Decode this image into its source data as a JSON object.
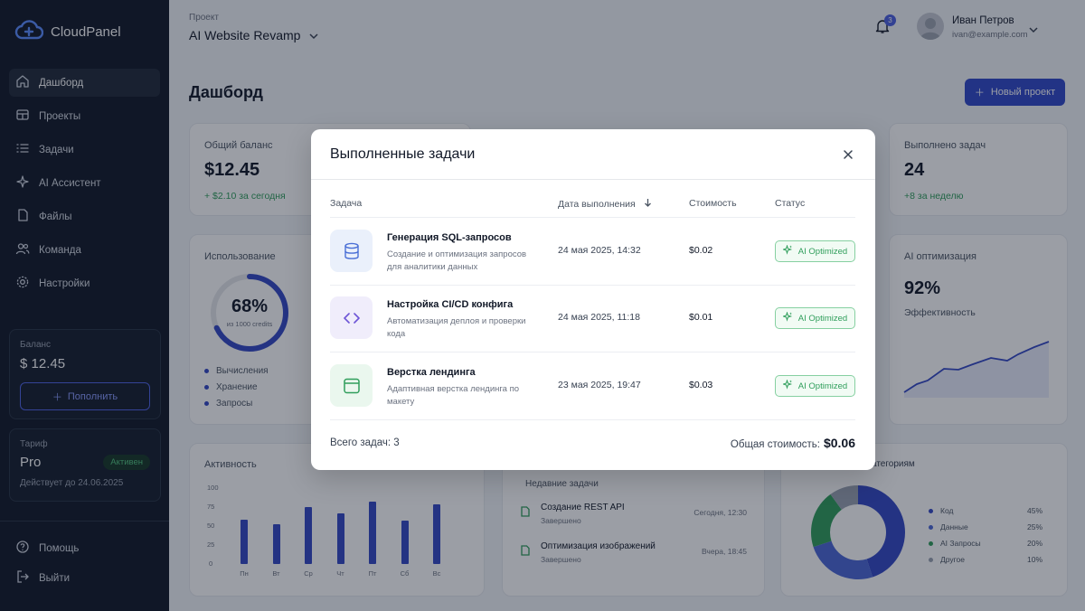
{
  "app": {
    "name": "CloudPanel"
  },
  "sidebar": {
    "items": [
      {
        "label": "Дашборд",
        "icon": "home-icon",
        "active": true
      },
      {
        "label": "Проекты",
        "icon": "folder-icon"
      },
      {
        "label": "Задачи",
        "icon": "list-icon"
      },
      {
        "label": "AI Ассистент",
        "icon": "sparkle-icon"
      },
      {
        "label": "Файлы",
        "icon": "file-icon"
      },
      {
        "label": "Команда",
        "icon": "users-icon"
      },
      {
        "label": "Настройки",
        "icon": "gear-icon"
      }
    ],
    "balance": {
      "label": "Баланс",
      "value": "$ 12.45",
      "topup": "Пополнить"
    },
    "plan": {
      "label": "Тариф",
      "name": "Pro",
      "badge": "Активен",
      "valid": "Действует до 24.06.2025"
    },
    "bottom": [
      {
        "label": "Помощь",
        "icon": "help-icon"
      },
      {
        "label": "Выйти",
        "icon": "logout-icon"
      }
    ]
  },
  "header": {
    "project_label": "Проект",
    "project_name": "AI Website Revamp",
    "notifications": "3",
    "user": {
      "name": "Иван Петров",
      "email": "ivan@example.com"
    }
  },
  "page": {
    "title": "Дашборд",
    "new_project": "Новый проект"
  },
  "stats": {
    "balance": {
      "label": "Общий баланс",
      "value": "$12.45",
      "delta": "+ $2.10 за сегодня"
    },
    "done": {
      "label": "Выполнено задач",
      "value": "24",
      "delta": "+8 за неделю"
    }
  },
  "usage": {
    "title": "Использование",
    "percent": "68%",
    "sub": "из 1000 credits",
    "fraction": 0.68,
    "legend": [
      "Вычисления",
      "Хранение",
      "Запросы"
    ]
  },
  "ai_opt": {
    "title": "AI оптимизация",
    "value": "92%",
    "sub": "Эффективность"
  },
  "activity": {
    "title": "Активность",
    "y_ticks": [
      "100",
      "75",
      "50",
      "25",
      "0"
    ],
    "days": [
      "Пн",
      "Вт",
      "Ср",
      "Чт",
      "Пт",
      "Сб",
      "Вс"
    ],
    "values": [
      58,
      52,
      75,
      67,
      82,
      57,
      78
    ]
  },
  "recent": {
    "title": "Недавние задачи",
    "items": [
      {
        "title": "Создание REST API",
        "status": "Завершено",
        "time": "Сегодня, 12:30"
      },
      {
        "title": "Оптимизация изображений",
        "status": "Завершено",
        "time": "Вчера, 18:45"
      }
    ]
  },
  "categories": {
    "title": "атегориям",
    "items": [
      {
        "name": "Код",
        "pct": "45%",
        "value": 45,
        "color": "#3347c5"
      },
      {
        "name": "Данные",
        "pct": "25%",
        "value": 25,
        "color": "#4a67d6"
      },
      {
        "name": "AI Запросы",
        "pct": "20%",
        "value": 20,
        "color": "#2f9e5b"
      },
      {
        "name": "Другое",
        "pct": "10%",
        "value": 10,
        "color": "#9aa3b2"
      }
    ]
  },
  "modal": {
    "title": "Выполненные задачи",
    "columns": {
      "task": "Задача",
      "date": "Дата выполнения",
      "cost": "Стоимость",
      "status": "Статус"
    },
    "rows": [
      {
        "title": "Генерация SQL-запросов",
        "desc": "Создание и оптимизация запросов для аналитики данных",
        "date": "24 мая 2025, 14:32",
        "cost": "$0.02",
        "status": "AI Optimized",
        "icon": "database-icon",
        "icon_bg": "#eaf0fb",
        "icon_color": "#4a6fd6"
      },
      {
        "title": "Настройка CI/CD конфига",
        "desc": "Автоматизация деплоя и проверки кода",
        "date": "24 мая 2025, 11:18",
        "cost": "$0.01",
        "status": "AI Optimized",
        "icon": "code-icon",
        "icon_bg": "#f0edfb",
        "icon_color": "#6d55d6"
      },
      {
        "title": "Верстка лендинга",
        "desc": "Адаптивная верстка лендинга по макету",
        "date": "23 мая 2025, 19:47",
        "cost": "$0.03",
        "status": "AI Optimized",
        "icon": "layout-icon",
        "icon_bg": "#eaf7ee",
        "icon_color": "#2f9e5b"
      }
    ],
    "total_label": "Всего задач: 3",
    "sum_label": "Общая стоимость:",
    "sum_value": "$0.06"
  }
}
